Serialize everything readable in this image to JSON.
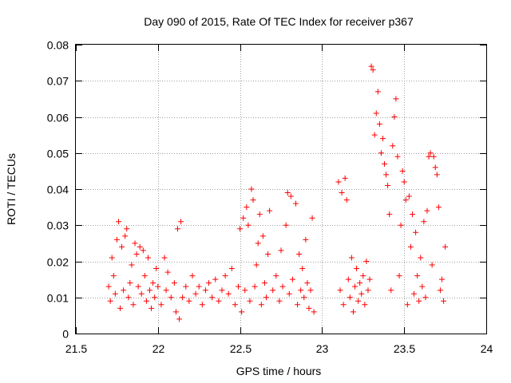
{
  "chart_data": {
    "type": "scatter",
    "title": "Day 090 of 2015, Rate Of TEC Index for receiver p367",
    "xlabel": "GPS time / hours",
    "ylabel": "ROTI / TECUs",
    "xlim": [
      21.5,
      24
    ],
    "ylim": [
      0,
      0.08
    ],
    "x_ticks": [
      21.5,
      22,
      22.5,
      23,
      23.5,
      24
    ],
    "x_tick_labels": [
      "21.5",
      "22",
      "22.5",
      "23",
      "23.5",
      "24"
    ],
    "y_ticks": [
      0,
      0.01,
      0.02,
      0.03,
      0.04,
      0.05,
      0.06,
      0.07,
      0.08
    ],
    "y_tick_labels": [
      "0",
      "0.01",
      "0.02",
      "0.03",
      "0.04",
      "0.05",
      "0.06",
      "0.07",
      "0.08"
    ],
    "grid": true,
    "marker": "+",
    "series": [
      {
        "name": "ROTI",
        "color": "#ff0000",
        "points": [
          [
            21.7,
            0.013
          ],
          [
            21.71,
            0.009
          ],
          [
            21.72,
            0.021
          ],
          [
            21.73,
            0.016
          ],
          [
            21.74,
            0.011
          ],
          [
            21.75,
            0.026
          ],
          [
            21.76,
            0.031
          ],
          [
            21.77,
            0.007
          ],
          [
            21.78,
            0.024
          ],
          [
            21.79,
            0.012
          ],
          [
            21.8,
            0.027
          ],
          [
            21.81,
            0.029
          ],
          [
            21.82,
            0.01
          ],
          [
            21.83,
            0.014
          ],
          [
            21.84,
            0.019
          ],
          [
            21.85,
            0.008
          ],
          [
            21.86,
            0.025
          ],
          [
            21.87,
            0.022
          ],
          [
            21.88,
            0.013
          ],
          [
            21.89,
            0.024
          ],
          [
            21.9,
            0.011
          ],
          [
            21.91,
            0.023
          ],
          [
            21.92,
            0.016
          ],
          [
            21.93,
            0.009
          ],
          [
            21.94,
            0.021
          ],
          [
            21.95,
            0.012
          ],
          [
            21.96,
            0.007
          ],
          [
            21.97,
            0.014
          ],
          [
            21.98,
            0.01
          ],
          [
            21.99,
            0.018
          ],
          [
            22.0,
            0.013
          ],
          [
            22.02,
            0.008
          ],
          [
            22.04,
            0.021
          ],
          [
            22.05,
            0.012
          ],
          [
            22.06,
            0.017
          ],
          [
            22.08,
            0.01
          ],
          [
            22.1,
            0.014
          ],
          [
            22.11,
            0.006
          ],
          [
            22.12,
            0.029
          ],
          [
            22.13,
            0.004
          ],
          [
            22.14,
            0.031
          ],
          [
            22.15,
            0.01
          ],
          [
            22.17,
            0.013
          ],
          [
            22.19,
            0.009
          ],
          [
            22.21,
            0.016
          ],
          [
            22.23,
            0.011
          ],
          [
            22.25,
            0.013
          ],
          [
            22.27,
            0.008
          ],
          [
            22.29,
            0.012
          ],
          [
            22.31,
            0.014
          ],
          [
            22.33,
            0.01
          ],
          [
            22.35,
            0.015
          ],
          [
            22.37,
            0.009
          ],
          [
            22.39,
            0.012
          ],
          [
            22.41,
            0.016
          ],
          [
            22.43,
            0.011
          ],
          [
            22.45,
            0.018
          ],
          [
            22.47,
            0.008
          ],
          [
            22.49,
            0.013
          ],
          [
            22.5,
            0.029
          ],
          [
            22.51,
            0.006
          ],
          [
            22.52,
            0.032
          ],
          [
            22.53,
            0.012
          ],
          [
            22.54,
            0.035
          ],
          [
            22.55,
            0.03
          ],
          [
            22.56,
            0.009
          ],
          [
            22.57,
            0.04
          ],
          [
            22.58,
            0.037
          ],
          [
            22.59,
            0.013
          ],
          [
            22.6,
            0.019
          ],
          [
            22.61,
            0.025
          ],
          [
            22.62,
            0.033
          ],
          [
            22.63,
            0.008
          ],
          [
            22.64,
            0.027
          ],
          [
            22.65,
            0.014
          ],
          [
            22.66,
            0.01
          ],
          [
            22.67,
            0.022
          ],
          [
            22.68,
            0.034
          ],
          [
            22.7,
            0.012
          ],
          [
            22.72,
            0.016
          ],
          [
            22.74,
            0.009
          ],
          [
            22.75,
            0.023
          ],
          [
            22.76,
            0.013
          ],
          [
            22.78,
            0.03
          ],
          [
            22.79,
            0.039
          ],
          [
            22.8,
            0.011
          ],
          [
            22.81,
            0.038
          ],
          [
            22.82,
            0.015
          ],
          [
            22.84,
            0.036
          ],
          [
            22.85,
            0.008
          ],
          [
            22.86,
            0.022
          ],
          [
            22.87,
            0.012
          ],
          [
            22.88,
            0.018
          ],
          [
            22.89,
            0.01
          ],
          [
            22.9,
            0.026
          ],
          [
            22.91,
            0.014
          ],
          [
            22.92,
            0.007
          ],
          [
            22.93,
            0.012
          ],
          [
            22.94,
            0.032
          ],
          [
            22.95,
            0.006
          ],
          [
            23.1,
            0.042
          ],
          [
            23.11,
            0.012
          ],
          [
            23.12,
            0.039
          ],
          [
            23.13,
            0.008
          ],
          [
            23.14,
            0.043
          ],
          [
            23.15,
            0.037
          ],
          [
            23.16,
            0.015
          ],
          [
            23.17,
            0.01
          ],
          [
            23.18,
            0.021
          ],
          [
            23.19,
            0.006
          ],
          [
            23.2,
            0.013
          ],
          [
            23.21,
            0.018
          ],
          [
            23.22,
            0.009
          ],
          [
            23.23,
            0.014
          ],
          [
            23.24,
            0.011
          ],
          [
            23.25,
            0.016
          ],
          [
            23.26,
            0.008
          ],
          [
            23.27,
            0.02
          ],
          [
            23.28,
            0.012
          ],
          [
            23.29,
            0.015
          ],
          [
            23.3,
            0.074
          ],
          [
            23.31,
            0.073
          ],
          [
            23.32,
            0.055
          ],
          [
            23.33,
            0.061
          ],
          [
            23.34,
            0.067
          ],
          [
            23.35,
            0.058
          ],
          [
            23.36,
            0.05
          ],
          [
            23.37,
            0.054
          ],
          [
            23.38,
            0.047
          ],
          [
            23.39,
            0.044
          ],
          [
            23.4,
            0.041
          ],
          [
            23.41,
            0.033
          ],
          [
            23.42,
            0.012
          ],
          [
            23.43,
            0.052
          ],
          [
            23.44,
            0.06
          ],
          [
            23.45,
            0.065
          ],
          [
            23.46,
            0.049
          ],
          [
            23.47,
            0.016
          ],
          [
            23.48,
            0.03
          ],
          [
            23.49,
            0.045
          ],
          [
            23.5,
            0.042
          ],
          [
            23.51,
            0.037
          ],
          [
            23.52,
            0.008
          ],
          [
            23.53,
            0.038
          ],
          [
            23.54,
            0.024
          ],
          [
            23.55,
            0.033
          ],
          [
            23.56,
            0.011
          ],
          [
            23.57,
            0.028
          ],
          [
            23.58,
            0.016
          ],
          [
            23.59,
            0.009
          ],
          [
            23.6,
            0.021
          ],
          [
            23.61,
            0.013
          ],
          [
            23.62,
            0.031
          ],
          [
            23.63,
            0.01
          ],
          [
            23.64,
            0.034
          ],
          [
            23.65,
            0.049
          ],
          [
            23.66,
            0.05
          ],
          [
            23.67,
            0.019
          ],
          [
            23.68,
            0.049
          ],
          [
            23.69,
            0.046
          ],
          [
            23.7,
            0.044
          ],
          [
            23.71,
            0.035
          ],
          [
            23.72,
            0.012
          ],
          [
            23.73,
            0.015
          ],
          [
            23.74,
            0.009
          ],
          [
            23.75,
            0.024
          ]
        ]
      }
    ]
  }
}
